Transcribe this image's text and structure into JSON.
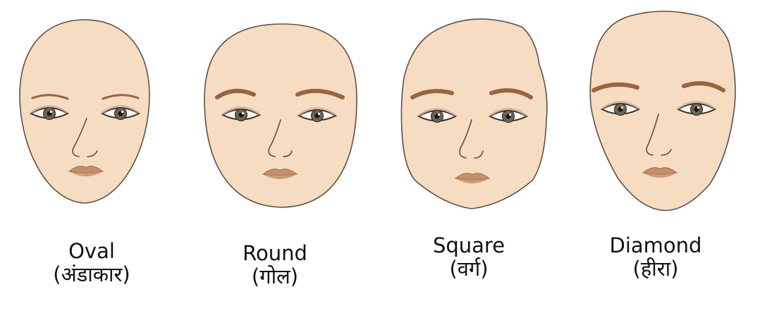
{
  "colors": {
    "skin": "#f6dcc0",
    "outline": "#5f5147",
    "brow": "#9a6440",
    "lips": "#c2906b",
    "iris": "#6b6556"
  },
  "faces": [
    {
      "name": "Oval",
      "hindi": "(अंडाकार)",
      "shape": "oval",
      "icon": "oval-face-icon"
    },
    {
      "name": "Round",
      "hindi": "(गोल)",
      "shape": "round",
      "icon": "round-face-icon"
    },
    {
      "name": "Square",
      "hindi": "(वर्ग)",
      "shape": "square",
      "icon": "square-face-icon"
    },
    {
      "name": "Diamond",
      "hindi": "(हीरा)",
      "shape": "diamond",
      "icon": "diamond-face-icon"
    }
  ]
}
